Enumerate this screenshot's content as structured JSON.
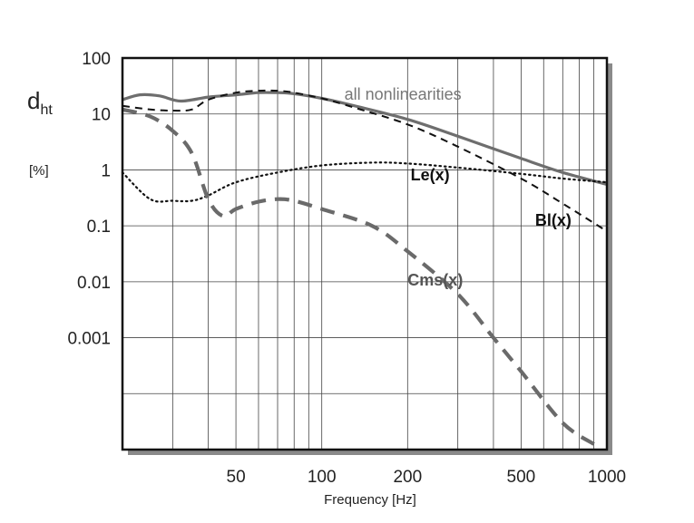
{
  "chart_data": {
    "type": "line",
    "xlabel": "Frequency  [Hz]",
    "ylabel_main": "d",
    "ylabel_sub": "ht",
    "ylabel_unit": "[%]",
    "x_scale": "log",
    "y_scale": "log",
    "xlim": [
      20,
      1000
    ],
    "ylim": [
      1e-05,
      100
    ],
    "grid": true,
    "x_ticks": [
      {
        "value": 50,
        "label": "50"
      },
      {
        "value": 100,
        "label": "100"
      },
      {
        "value": 200,
        "label": "200"
      },
      {
        "value": 500,
        "label": "500"
      },
      {
        "value": 1000,
        "label": "1000"
      }
    ],
    "y_ticks": [
      {
        "value": 100,
        "label": "100"
      },
      {
        "value": 10,
        "label": "10"
      },
      {
        "value": 1,
        "label": "1"
      },
      {
        "value": 0.1,
        "label": "0.1"
      },
      {
        "value": 0.01,
        "label": "0.01"
      },
      {
        "value": 0.001,
        "label": "0.001"
      },
      {
        "value": 0.0001,
        "label": ""
      }
    ],
    "series": [
      {
        "name": "all nonlinearities",
        "style": "solid",
        "color": "#6e6e6e",
        "points": [
          [
            20,
            18
          ],
          [
            23,
            22
          ],
          [
            27,
            21
          ],
          [
            32,
            17
          ],
          [
            40,
            20
          ],
          [
            50,
            22
          ],
          [
            60,
            24
          ],
          [
            70,
            24
          ],
          [
            80,
            23
          ],
          [
            100,
            19
          ],
          [
            130,
            14
          ],
          [
            200,
            8
          ],
          [
            300,
            4
          ],
          [
            500,
            1.6
          ],
          [
            700,
            0.9
          ],
          [
            1000,
            0.55
          ]
        ]
      },
      {
        "name": "Bl(x)",
        "style": "dashed",
        "color": "#111111",
        "points": [
          [
            20,
            14
          ],
          [
            25,
            12
          ],
          [
            30,
            11.5
          ],
          [
            35,
            12
          ],
          [
            40,
            18
          ],
          [
            50,
            24
          ],
          [
            60,
            26
          ],
          [
            70,
            26
          ],
          [
            80,
            24
          ],
          [
            100,
            19
          ],
          [
            130,
            13
          ],
          [
            200,
            6.5
          ],
          [
            300,
            2.6
          ],
          [
            500,
            0.7
          ],
          [
            700,
            0.25
          ],
          [
            1000,
            0.08
          ]
        ]
      },
      {
        "name": "Le(x)",
        "style": "dotted",
        "color": "#111111",
        "points": [
          [
            20,
            0.9
          ],
          [
            25,
            0.3
          ],
          [
            30,
            0.28
          ],
          [
            35,
            0.28
          ],
          [
            40,
            0.35
          ],
          [
            50,
            0.6
          ],
          [
            70,
            0.9
          ],
          [
            100,
            1.2
          ],
          [
            150,
            1.35
          ],
          [
            200,
            1.3
          ],
          [
            300,
            1.1
          ],
          [
            500,
            0.85
          ],
          [
            700,
            0.7
          ],
          [
            1000,
            0.6
          ]
        ]
      },
      {
        "name": "Cms(x)",
        "style": "dashed-heavy",
        "color": "#6a6a6a",
        "points": [
          [
            20,
            12
          ],
          [
            25,
            9
          ],
          [
            30,
            5
          ],
          [
            35,
            2
          ],
          [
            40,
            0.3
          ],
          [
            45,
            0.15
          ],
          [
            50,
            0.2
          ],
          [
            60,
            0.27
          ],
          [
            70,
            0.3
          ],
          [
            80,
            0.28
          ],
          [
            100,
            0.2
          ],
          [
            150,
            0.1
          ],
          [
            200,
            0.035
          ],
          [
            300,
            0.006
          ],
          [
            400,
            0.001
          ],
          [
            500,
            0.00025
          ],
          [
            700,
            3e-05
          ],
          [
            900,
            1.25e-05
          ]
        ]
      }
    ],
    "annotations": [
      {
        "text": "all nonlinearities",
        "x": 120,
        "y": 18,
        "color": "#777777",
        "bold": false
      },
      {
        "text": "Le(x)",
        "x": 205,
        "y": 0.65,
        "color": "#111111",
        "bold": true
      },
      {
        "text": "Bl(x)",
        "x": 560,
        "y": 0.1,
        "color": "#111111",
        "bold": true
      },
      {
        "text": "Cms(x)",
        "x": 200,
        "y": 0.0085,
        "color": "#555555",
        "bold": true
      }
    ]
  }
}
